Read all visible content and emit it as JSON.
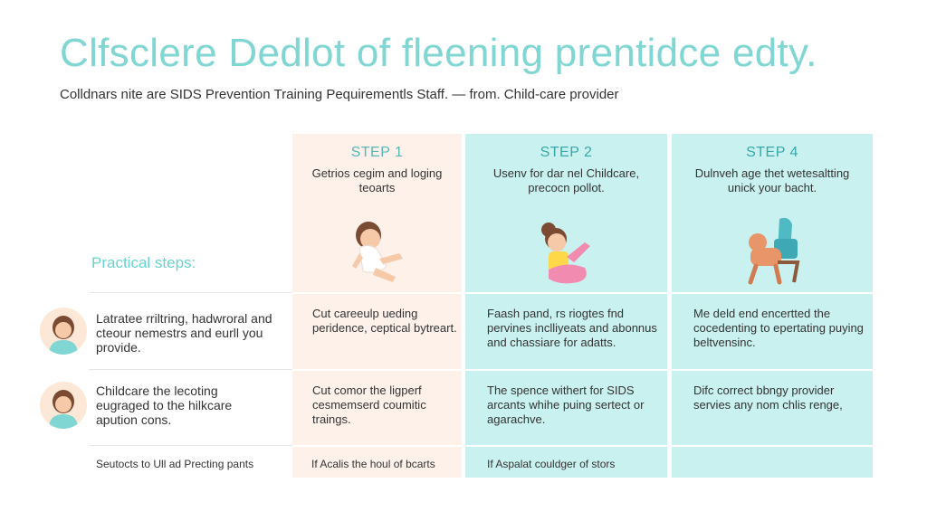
{
  "title": "Clfsclere Dedlot of fleening prentidce edty.",
  "subtitle": "Colldnars nite are SIDS Prevention Training Pequirementls Staff. — from. Child-care provider",
  "practical_label": "Practical steps:",
  "steps": [
    {
      "label": "STEP 1",
      "text": "Getrios cegim and loging teoarts"
    },
    {
      "label": "STEP 2",
      "text": "Usenv for dar nel Childcare, precocn pollot."
    },
    {
      "label": "STEP 4",
      "text": "Dulnveh age thet wetesaltting unick your bacht."
    }
  ],
  "rows": [
    {
      "label": "Latratee rriltring, hadwroral and cteour nemestrs and eurll you provide.",
      "cells": [
        "Cut careeulp ueding peridence, ceptical bytreart.",
        "Faash pand, rs riogtes fnd pervines inclliyeats and abonnus and chassiare for adatts.",
        "Me deld end encertted the cocedenting to epertating puying beltvensinc."
      ]
    },
    {
      "label": "Childcare the lecoting eugraged to the hilkcare apution cons.",
      "cells": [
        "Cut comor the ligperf cesmemserd coumitic traings.",
        "The spence withert for SIDS arcants whihe puing sertect or agarachve.",
        "Difc correct bbngy provider servies any nom chlis renge,"
      ]
    }
  ],
  "footer": {
    "label": "Seutocts to Ull ad Precting pants",
    "cells": [
      "If Acalis the houl of bcarts",
      "If Aspalat couldger of stors",
      ""
    ]
  },
  "colors": {
    "accent": "#7fd6d2",
    "col1": "#fdf1ea",
    "col23": "#c9f1ef"
  }
}
